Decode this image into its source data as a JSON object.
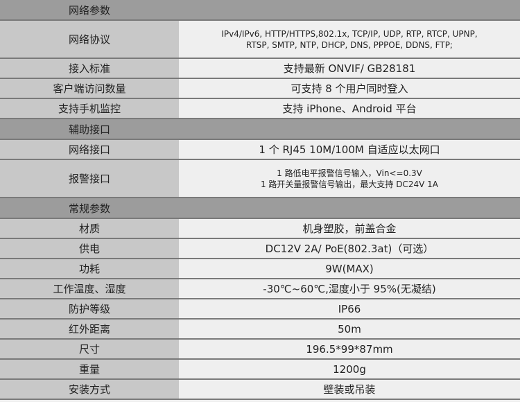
{
  "sections": [
    {
      "title": "网络参数",
      "rows": [
        {
          "label": "网络协议",
          "value": [
            "IPv4/IPv6, HTTP/HTTPS,802.1x, TCP/IP, UDP, RTP, RTCP, UPNP,",
            "RTSP, SMTP, NTP, DHCP, DNS, PPPOE, DDNS, FTP;"
          ]
        },
        {
          "label": "接入标准",
          "value": [
            "支持最新 ONVIF/ GB28181"
          ]
        },
        {
          "label": "客户端访问数量",
          "value": [
            "可支持 8 个用户同时登入"
          ]
        },
        {
          "label": "支持手机监控",
          "value": [
            "支持 iPhone、Android 平台"
          ]
        }
      ]
    },
    {
      "title": "辅助接口",
      "rows": [
        {
          "label": "网络接口",
          "value": [
            "1 个 RJ45 10M/100M 自适应以太网口"
          ]
        },
        {
          "label": "报警接口",
          "value": [
            "1 路低电平报警信号输入，Vin<=0.3V",
            "1 路开关量报警信号输出，最大支持 DC24V 1A"
          ]
        }
      ]
    },
    {
      "title": "常规参数",
      "rows": [
        {
          "label": "材质",
          "value": [
            "机身塑胶，前盖合金"
          ]
        },
        {
          "label": "供电",
          "value": [
            "DC12V 2A/ PoE(802.3at)（可选）"
          ]
        },
        {
          "label": "功耗",
          "value": [
            "9W(MAX)"
          ]
        },
        {
          "label": "工作温度、湿度",
          "value": [
            "-30℃~60℃,湿度小于 95%(无凝结)"
          ]
        },
        {
          "label": "防护等级",
          "value": [
            "IP66"
          ]
        },
        {
          "label": "红外距离",
          "value": [
            "50m"
          ]
        },
        {
          "label": "尺寸",
          "value": [
            "196.5*99*87mm"
          ]
        },
        {
          "label": "重量",
          "value": [
            "1200g"
          ]
        },
        {
          "label": "安装方式",
          "value": [
            "壁装或吊装"
          ]
        }
      ]
    }
  ]
}
